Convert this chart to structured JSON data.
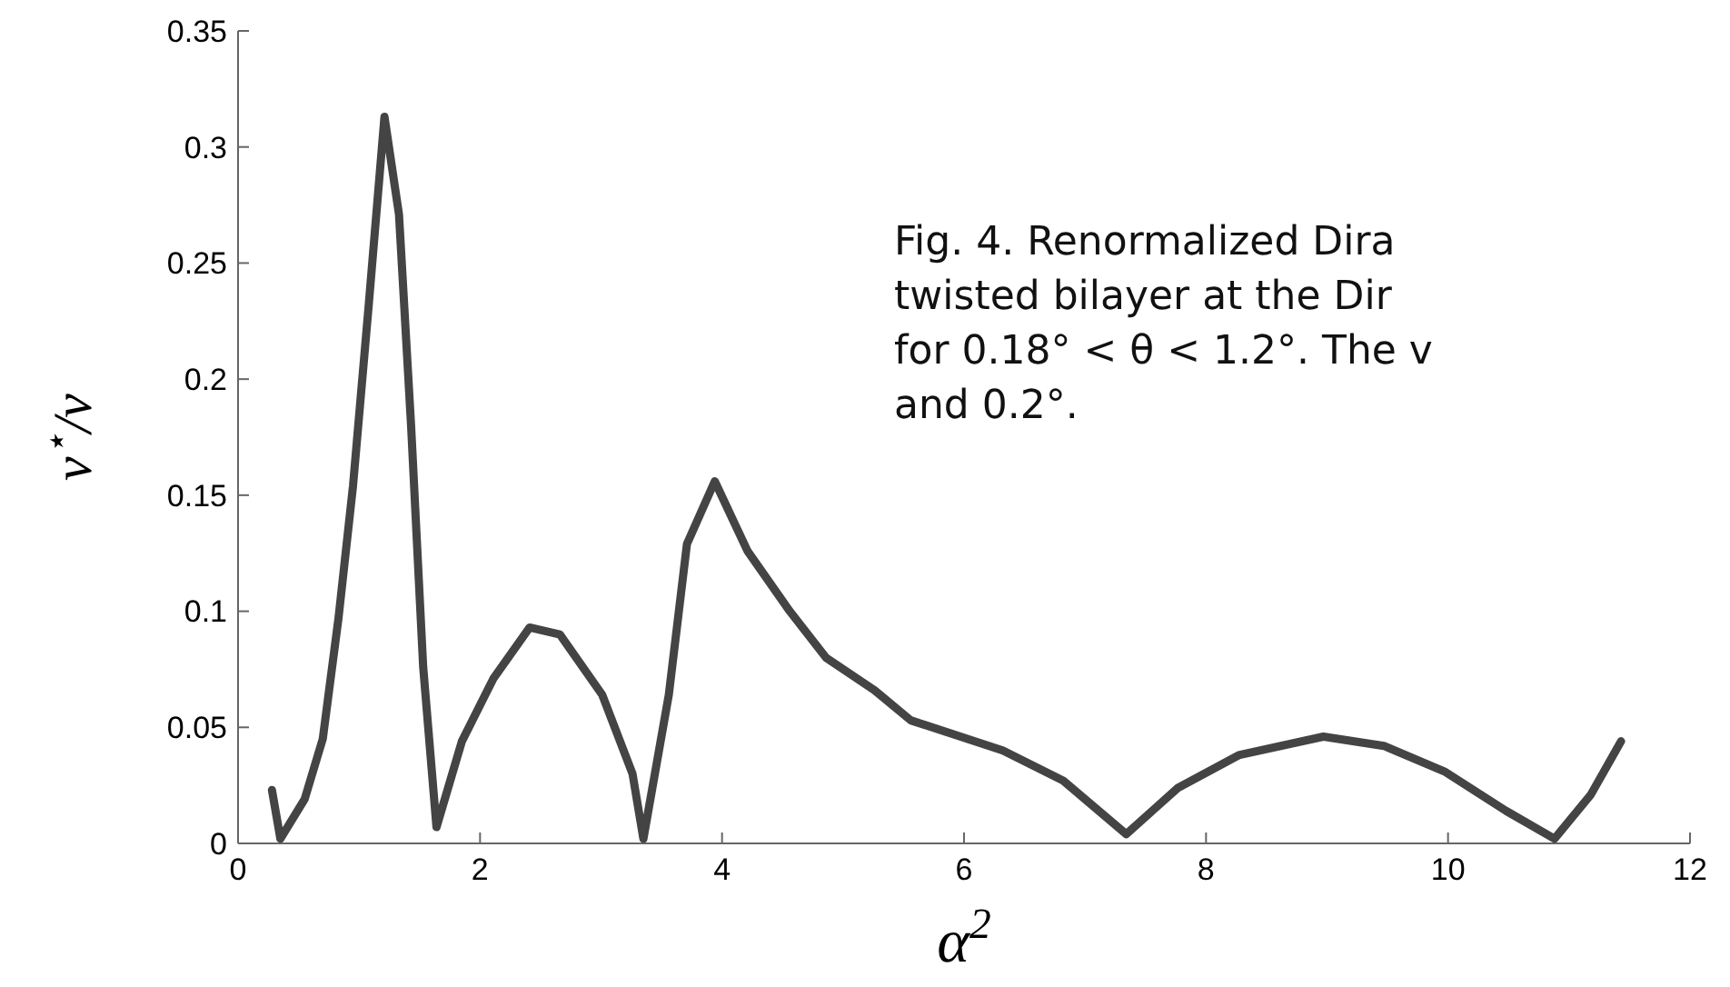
{
  "chart_data": {
    "type": "line",
    "xlabel": "α$^{2}$",
    "ylabel": "v$^{⋆}$/v",
    "annotations": [
      "Fig. 4.  Renormalized Dira",
      "twisted bilayer at the Dir",
      "for 0.18° < θ < 1.2°. The v",
      "and 0.2°."
    ],
    "xlim": [
      0,
      12
    ],
    "xticks": [
      0,
      2,
      4,
      6,
      8,
      10,
      12
    ],
    "ylim": [
      0,
      0.35
    ],
    "yticks": [
      0,
      0.05,
      0.1,
      0.15,
      0.2,
      0.25,
      0.3,
      0.35
    ],
    "grid": false,
    "marker": "none",
    "line_style": "solid",
    "series": [
      {
        "color": "#444444",
        "x": [
          0.28,
          0.35,
          0.55,
          0.7,
          0.83,
          0.95,
          1.08,
          1.21,
          1.33,
          1.43,
          1.53,
          1.64,
          1.85,
          2.11,
          2.41,
          2.66,
          3.01,
          3.26,
          3.35,
          3.56,
          3.71,
          3.94,
          4.21,
          4.56,
          4.86,
          5.26,
          5.56,
          6.32,
          6.82,
          7.34,
          7.77,
          8.27,
          8.97,
          9.47,
          9.97,
          10.48,
          10.88,
          11.18,
          11.43
        ],
        "values": [
          0.023,
          0.002,
          0.019,
          0.045,
          0.097,
          0.154,
          0.232,
          0.313,
          0.271,
          0.18,
          0.076,
          0.007,
          0.044,
          0.071,
          0.093,
          0.09,
          0.064,
          0.03,
          0.002,
          0.064,
          0.129,
          0.156,
          0.126,
          0.1,
          0.08,
          0.066,
          0.053,
          0.04,
          0.027,
          0.004,
          0.024,
          0.038,
          0.046,
          0.042,
          0.031,
          0.014,
          0.002,
          0.021,
          0.044
        ]
      }
    ]
  }
}
